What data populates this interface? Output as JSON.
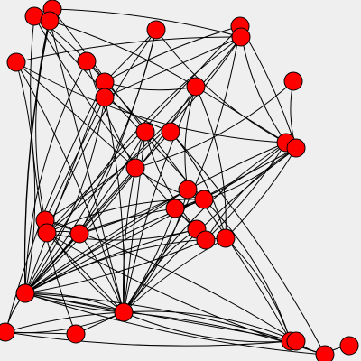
{
  "graph": {
    "node_color": "#ff0000",
    "edge_color": "#000000",
    "background": "#efefef",
    "nodes": [
      {
        "id": "n1"
      },
      {
        "id": "n2"
      },
      {
        "id": "n3"
      },
      {
        "id": "n4"
      },
      {
        "id": "n5"
      },
      {
        "id": "n6"
      },
      {
        "id": "n7"
      },
      {
        "id": "n8"
      },
      {
        "id": "n9"
      },
      {
        "id": "n10"
      },
      {
        "id": "n11"
      },
      {
        "id": "n12"
      },
      {
        "id": "n13"
      },
      {
        "id": "n14"
      },
      {
        "id": "n15"
      },
      {
        "id": "n16"
      },
      {
        "id": "n17"
      },
      {
        "id": "n18"
      },
      {
        "id": "n19"
      },
      {
        "id": "n20"
      },
      {
        "id": "n21"
      },
      {
        "id": "n22"
      },
      {
        "id": "n23"
      },
      {
        "id": "n24"
      },
      {
        "id": "n25"
      },
      {
        "id": "n26"
      },
      {
        "id": "n27"
      },
      {
        "id": "n28"
      },
      {
        "id": "n29"
      },
      {
        "id": "n30"
      },
      {
        "id": "n31"
      },
      {
        "id": "n32"
      },
      {
        "id": "n33"
      },
      {
        "id": "n34"
      },
      {
        "id": "n35"
      },
      {
        "id": "n36"
      }
    ],
    "edges": [
      [
        "n1",
        "n2"
      ],
      [
        "n1",
        "n8"
      ],
      [
        "n1",
        "n19"
      ],
      [
        "n1",
        "n20"
      ],
      [
        "n1",
        "n32"
      ],
      [
        "n1",
        "n3"
      ],
      [
        "n2",
        "n6"
      ],
      [
        "n2",
        "n13"
      ],
      [
        "n2",
        "n28"
      ],
      [
        "n2",
        "n21"
      ],
      [
        "n2",
        "n3"
      ],
      [
        "n3",
        "n12"
      ],
      [
        "n3",
        "n29"
      ],
      [
        "n3",
        "n27"
      ],
      [
        "n4",
        "n16"
      ],
      [
        "n4",
        "n28"
      ],
      [
        "n4",
        "n23"
      ],
      [
        "n4",
        "n9"
      ],
      [
        "n4",
        "n22"
      ],
      [
        "n5",
        "n15"
      ],
      [
        "n5",
        "n31"
      ],
      [
        "n5",
        "n16"
      ],
      [
        "n5",
        "n22"
      ],
      [
        "n5",
        "n9"
      ],
      [
        "n6",
        "n28"
      ],
      [
        "n6",
        "n21"
      ],
      [
        "n6",
        "n22"
      ],
      [
        "n6",
        "n10"
      ],
      [
        "n6",
        "n7"
      ],
      [
        "n7",
        "n15"
      ],
      [
        "n7",
        "n28"
      ],
      [
        "n7",
        "n31"
      ],
      [
        "n7",
        "n17"
      ],
      [
        "n8",
        "n17"
      ],
      [
        "n8",
        "n28"
      ],
      [
        "n8",
        "n9"
      ],
      [
        "n8",
        "n33"
      ],
      [
        "n9",
        "n28"
      ],
      [
        "n9",
        "n30"
      ],
      [
        "n9",
        "n12"
      ],
      [
        "n10",
        "n28"
      ],
      [
        "n10",
        "n31"
      ],
      [
        "n10",
        "n21"
      ],
      [
        "n10",
        "n14"
      ],
      [
        "n11",
        "n16"
      ],
      [
        "n11",
        "n17"
      ],
      [
        "n12",
        "n28"
      ],
      [
        "n12",
        "n15"
      ],
      [
        "n12",
        "n31"
      ],
      [
        "n12",
        "n18"
      ],
      [
        "n12",
        "n26"
      ],
      [
        "n13",
        "n28"
      ],
      [
        "n13",
        "n31"
      ],
      [
        "n13",
        "n17"
      ],
      [
        "n13",
        "n24"
      ],
      [
        "n14",
        "n26"
      ],
      [
        "n14",
        "n35"
      ],
      [
        "n14",
        "n27"
      ],
      [
        "n15",
        "n28"
      ],
      [
        "n15",
        "n31"
      ],
      [
        "n15",
        "n20"
      ],
      [
        "n15",
        "n25"
      ],
      [
        "n16",
        "n28"
      ],
      [
        "n16",
        "n31"
      ],
      [
        "n16",
        "n25"
      ],
      [
        "n16",
        "n20"
      ],
      [
        "n16",
        "n26"
      ],
      [
        "n17",
        "n28"
      ],
      [
        "n17",
        "n31"
      ],
      [
        "n17",
        "n19"
      ],
      [
        "n18",
        "n31"
      ],
      [
        "n18",
        "n23"
      ],
      [
        "n18",
        "n28"
      ],
      [
        "n19",
        "n28"
      ],
      [
        "n19",
        "n22"
      ],
      [
        "n19",
        "n33"
      ],
      [
        "n20",
        "n31"
      ],
      [
        "n20",
        "n24"
      ],
      [
        "n20",
        "n23"
      ],
      [
        "n21",
        "n31"
      ],
      [
        "n21",
        "n23"
      ],
      [
        "n21",
        "n34"
      ],
      [
        "n22",
        "n31"
      ],
      [
        "n22",
        "n35"
      ],
      [
        "n22",
        "n24"
      ],
      [
        "n22",
        "n23"
      ],
      [
        "n23",
        "n31"
      ],
      [
        "n23",
        "n28"
      ],
      [
        "n24",
        "n28"
      ],
      [
        "n24",
        "n31"
      ],
      [
        "n24",
        "n25"
      ],
      [
        "n25",
        "n28"
      ],
      [
        "n25",
        "n20"
      ],
      [
        "n26",
        "n29"
      ],
      [
        "n26",
        "n28"
      ],
      [
        "n26",
        "n33"
      ],
      [
        "n27",
        "n28"
      ],
      [
        "n27",
        "n31"
      ],
      [
        "n28",
        "n29"
      ],
      [
        "n28",
        "n30"
      ],
      [
        "n28",
        "n31"
      ],
      [
        "n28",
        "n33"
      ],
      [
        "n28",
        "n34"
      ],
      [
        "n28",
        "n35"
      ],
      [
        "n29",
        "n31"
      ],
      [
        "n29",
        "n30"
      ],
      [
        "n30",
        "n31"
      ],
      [
        "n30",
        "n32"
      ],
      [
        "n30",
        "n33"
      ],
      [
        "n31",
        "n33"
      ],
      [
        "n31",
        "n34"
      ],
      [
        "n31",
        "n35"
      ],
      [
        "n31",
        "n32"
      ],
      [
        "n33",
        "n34"
      ],
      [
        "n34",
        "n35"
      ],
      [
        "n35",
        "n36"
      ]
    ]
  }
}
